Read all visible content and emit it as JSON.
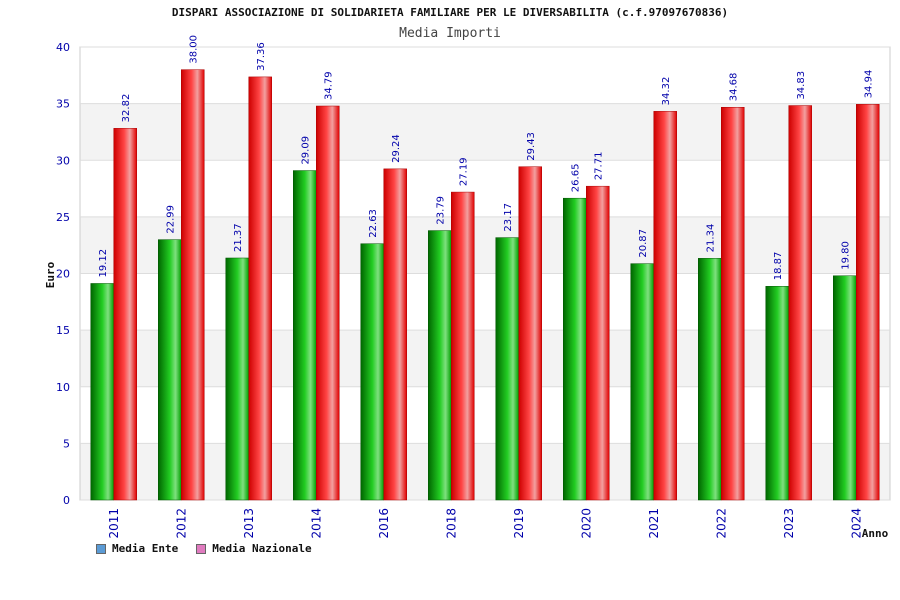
{
  "chart_data": {
    "type": "bar",
    "title": "DISPARI ASSOCIAZIONE DI SOLIDARIETA FAMILIARE PER LE DIVERSABILITA (c.f.97097670836)",
    "subtitle": "Media Importi",
    "xlabel": "Anno",
    "ylabel": "Euro",
    "ylim": [
      0,
      40
    ],
    "yticks": [
      0,
      5,
      10,
      15,
      20,
      25,
      30,
      35,
      40
    ],
    "categories": [
      "2011",
      "2012",
      "2013",
      "2014",
      "2016",
      "2018",
      "2019",
      "2020",
      "2021",
      "2022",
      "2023",
      "2024"
    ],
    "series": [
      {
        "name": "Media Ente",
        "values": [
          19.12,
          22.99,
          21.37,
          29.09,
          22.63,
          23.79,
          23.17,
          26.65,
          20.87,
          21.34,
          18.87,
          19.8
        ],
        "labels": [
          "19.12",
          "22.99",
          "21.37",
          "29.09",
          "22.63",
          "23.79",
          "23.17",
          "26.65",
          "20.87",
          "21.34",
          "18.87",
          "19.80"
        ],
        "color": "#00b000"
      },
      {
        "name": "Media Nazionale",
        "values": [
          32.82,
          38.0,
          37.36,
          34.79,
          29.24,
          27.19,
          29.43,
          27.71,
          34.32,
          34.68,
          34.83,
          34.94
        ],
        "labels": [
          "32.82",
          "38.00",
          "37.36",
          "34.79",
          "29.24",
          "27.19",
          "29.43",
          "27.71",
          "34.32",
          "34.68",
          "34.83",
          "34.94"
        ],
        "color": "#ee0000"
      }
    ],
    "grid": true,
    "legend_position": "bottom-left",
    "legend_colors": [
      "#5b9bd5",
      "#e07bbf"
    ]
  }
}
